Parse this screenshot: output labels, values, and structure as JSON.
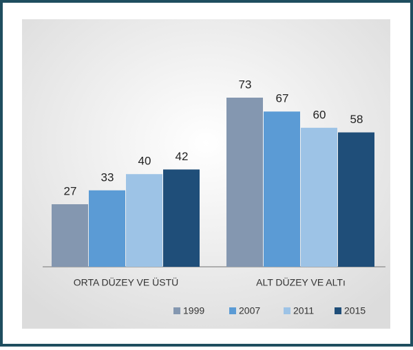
{
  "chart_data": {
    "type": "bar",
    "categories": [
      "ORTA DÜZEY VE ÜSTÜ",
      "ALT DÜZEY VE ALTı"
    ],
    "series": [
      {
        "name": "1999",
        "color": "#8497b0",
        "values": [
          27,
          73
        ]
      },
      {
        "name": "2007",
        "color": "#5b9bd5",
        "values": [
          33,
          67
        ]
      },
      {
        "name": "2011",
        "color": "#9dc3e6",
        "values": [
          40,
          60
        ]
      },
      {
        "name": "2015",
        "color": "#1f4e79",
        "values": [
          42,
          58
        ]
      }
    ],
    "legend": "bottom"
  }
}
